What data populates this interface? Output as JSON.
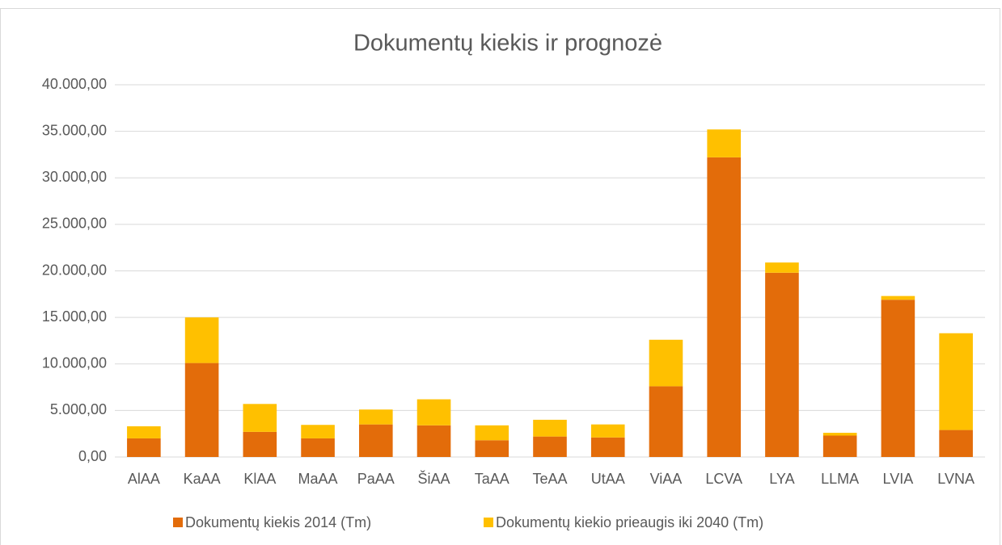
{
  "chart_data": {
    "type": "stacked_bar",
    "title": "Dokumentų kiekis ir prognozė",
    "categories": [
      "AlAA",
      "KaAA",
      "KlAA",
      "MaAA",
      "PaAA",
      "ŠiAA",
      "TaAA",
      "TeAA",
      "UtAA",
      "ViAA",
      "LCVA",
      "LYA",
      "LLMA",
      "LVIA",
      "LVNA"
    ],
    "series": [
      {
        "name": "Dokumentų kiekis 2014 (Tm)",
        "color": "#e36c0a",
        "values": [
          2000,
          10100,
          2700,
          2000,
          3500,
          3400,
          1800,
          2200,
          2100,
          7600,
          32200,
          19800,
          2300,
          16900,
          2900
        ]
      },
      {
        "name": "Dokumentų kiekio prieaugis iki 2040 (Tm)",
        "color": "#ffc000",
        "values": [
          1300,
          4900,
          3000,
          1450,
          1600,
          2800,
          1600,
          1800,
          1400,
          5000,
          3000,
          1100,
          300,
          400,
          10400
        ]
      }
    ],
    "ylim": [
      0,
      40000
    ],
    "yticks": [
      {
        "value": 0,
        "label": "0,00"
      },
      {
        "value": 5000,
        "label": "5.000,00"
      },
      {
        "value": 10000,
        "label": "10.000,00"
      },
      {
        "value": 15000,
        "label": "15.000,00"
      },
      {
        "value": 20000,
        "label": "20.000,00"
      },
      {
        "value": 25000,
        "label": "25.000,00"
      },
      {
        "value": 30000,
        "label": "30.000,00"
      },
      {
        "value": 35000,
        "label": "35.000,00"
      },
      {
        "value": 40000,
        "label": "40.000,00"
      }
    ],
    "grid": true,
    "legend": "bottom"
  }
}
